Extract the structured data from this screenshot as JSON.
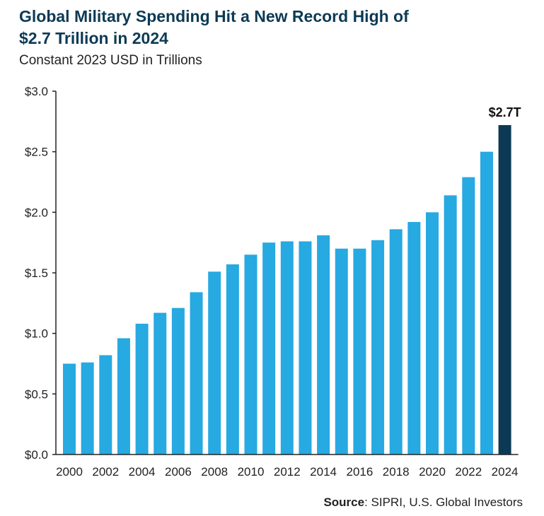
{
  "chart_data": {
    "type": "bar",
    "title_line1": "Global Military Spending Hit a New Record High of",
    "title_line2": "$2.7 Trillion in 2024",
    "subtitle": "Constant 2023 USD in Trillions",
    "categories": [
      "2000",
      "2001",
      "2002",
      "2003",
      "2004",
      "2005",
      "2006",
      "2007",
      "2008",
      "2009",
      "2010",
      "2011",
      "2012",
      "2013",
      "2014",
      "2015",
      "2016",
      "2017",
      "2018",
      "2019",
      "2020",
      "2021",
      "2022",
      "2023",
      "2024"
    ],
    "values": [
      0.75,
      0.76,
      0.82,
      0.96,
      1.08,
      1.17,
      1.21,
      1.34,
      1.51,
      1.57,
      1.65,
      1.75,
      1.76,
      1.76,
      1.81,
      1.7,
      1.7,
      1.77,
      1.86,
      1.92,
      2.0,
      2.14,
      2.29,
      2.5,
      2.72
    ],
    "x_tick_labels": [
      "2000",
      "2002",
      "2004",
      "2006",
      "2008",
      "2010",
      "2012",
      "2014",
      "2016",
      "2018",
      "2020",
      "2022",
      "2024"
    ],
    "y_tick_labels": [
      "$0.0",
      "$0.5",
      "$1.0",
      "$1.5",
      "$2.0",
      "$2.5",
      "$3.0"
    ],
    "ylim": [
      0,
      3.0
    ],
    "y_ticks": [
      0,
      0.5,
      1.0,
      1.5,
      2.0,
      2.5,
      3.0
    ],
    "highlight_category": "2024",
    "highlight_label": "$2.7T",
    "grid": false,
    "colors": {
      "bar": "#27a9e1",
      "highlight_bar": "#0c3a55",
      "axis": "#222222",
      "title": "#0c3a55"
    }
  },
  "source": {
    "label": "Source",
    "text": ": SIPRI, U.S. Global Investors"
  }
}
